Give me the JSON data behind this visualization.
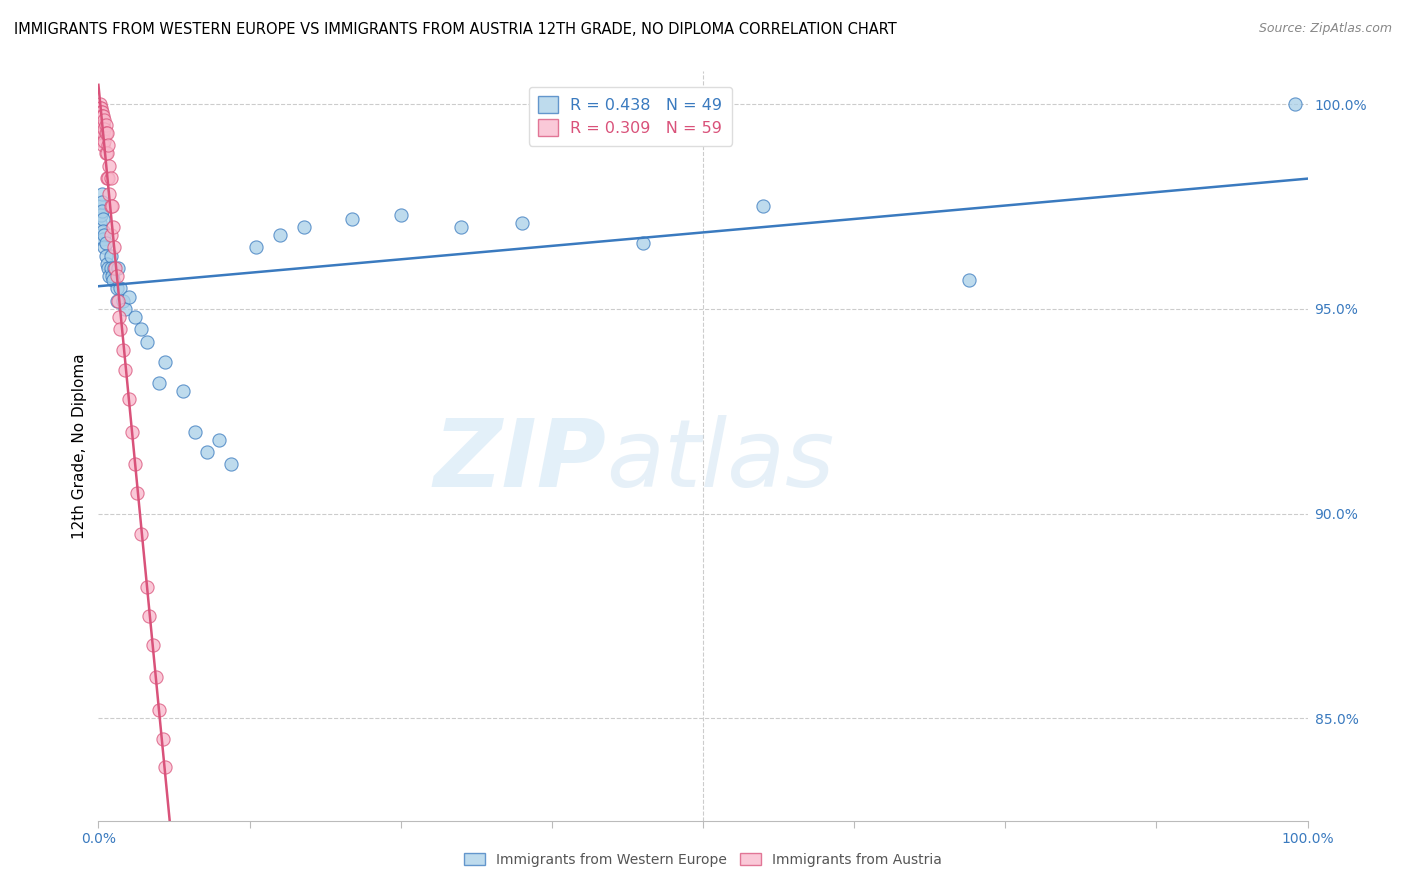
{
  "title": "IMMIGRANTS FROM WESTERN EUROPE VS IMMIGRANTS FROM AUSTRIA 12TH GRADE, NO DIPLOMA CORRELATION CHART",
  "source": "Source: ZipAtlas.com",
  "ylabel": "12th Grade, No Diploma",
  "legend_label_blue": "Immigrants from Western Europe",
  "legend_label_pink": "Immigrants from Austria",
  "R_blue": 0.438,
  "N_blue": 49,
  "R_pink": 0.309,
  "N_pink": 59,
  "blue_color": "#a8cfe8",
  "pink_color": "#f9b8cb",
  "trendline_blue": "#3a7abf",
  "trendline_pink": "#d9527a",
  "watermark_zip": "ZIP",
  "watermark_atlas": "atlas",
  "xlim": [
    0.0,
    1.0
  ],
  "ylim": [
    0.825,
    1.008
  ],
  "ytick_positions": [
    1.0,
    0.95,
    0.9,
    0.85
  ],
  "ytick_labels": [
    "100.0%",
    "95.0%",
    "90.0%",
    "85.0%"
  ],
  "blue_scatter_x": [
    0.001,
    0.002,
    0.002,
    0.003,
    0.003,
    0.003,
    0.004,
    0.004,
    0.004,
    0.005,
    0.005,
    0.006,
    0.006,
    0.007,
    0.008,
    0.009,
    0.01,
    0.01,
    0.011,
    0.012,
    0.013,
    0.015,
    0.015,
    0.016,
    0.018,
    0.02,
    0.022,
    0.025,
    0.03,
    0.035,
    0.04,
    0.05,
    0.055,
    0.07,
    0.08,
    0.09,
    0.1,
    0.11,
    0.13,
    0.15,
    0.17,
    0.21,
    0.25,
    0.3,
    0.35,
    0.45,
    0.55,
    0.72,
    0.99
  ],
  "blue_scatter_y": [
    0.971,
    0.975,
    0.973,
    0.978,
    0.976,
    0.974,
    0.972,
    0.969,
    0.967,
    0.968,
    0.965,
    0.966,
    0.963,
    0.961,
    0.96,
    0.958,
    0.963,
    0.96,
    0.958,
    0.957,
    0.96,
    0.955,
    0.952,
    0.96,
    0.955,
    0.952,
    0.95,
    0.953,
    0.948,
    0.945,
    0.942,
    0.932,
    0.937,
    0.93,
    0.92,
    0.915,
    0.918,
    0.912,
    0.965,
    0.968,
    0.97,
    0.972,
    0.973,
    0.97,
    0.971,
    0.966,
    0.975,
    0.957,
    1.0
  ],
  "pink_scatter_x": [
    0.001,
    0.001,
    0.001,
    0.001,
    0.001,
    0.001,
    0.001,
    0.002,
    0.002,
    0.002,
    0.002,
    0.002,
    0.003,
    0.003,
    0.003,
    0.003,
    0.003,
    0.004,
    0.004,
    0.004,
    0.004,
    0.005,
    0.005,
    0.005,
    0.006,
    0.006,
    0.006,
    0.007,
    0.007,
    0.007,
    0.008,
    0.008,
    0.009,
    0.009,
    0.01,
    0.01,
    0.01,
    0.011,
    0.012,
    0.013,
    0.014,
    0.015,
    0.016,
    0.017,
    0.018,
    0.02,
    0.022,
    0.025,
    0.028,
    0.03,
    0.032,
    0.035,
    0.04,
    0.042,
    0.045,
    0.048,
    0.05,
    0.053,
    0.055
  ],
  "pink_scatter_y": [
    1.0,
    0.999,
    0.998,
    0.997,
    0.996,
    0.995,
    0.993,
    0.999,
    0.998,
    0.997,
    0.995,
    0.993,
    0.998,
    0.997,
    0.995,
    0.993,
    0.991,
    0.997,
    0.995,
    0.993,
    0.99,
    0.996,
    0.994,
    0.991,
    0.995,
    0.993,
    0.988,
    0.993,
    0.988,
    0.982,
    0.99,
    0.982,
    0.985,
    0.978,
    0.982,
    0.975,
    0.968,
    0.975,
    0.97,
    0.965,
    0.96,
    0.958,
    0.952,
    0.948,
    0.945,
    0.94,
    0.935,
    0.928,
    0.92,
    0.912,
    0.905,
    0.895,
    0.882,
    0.875,
    0.868,
    0.86,
    0.852,
    0.845,
    0.838
  ]
}
